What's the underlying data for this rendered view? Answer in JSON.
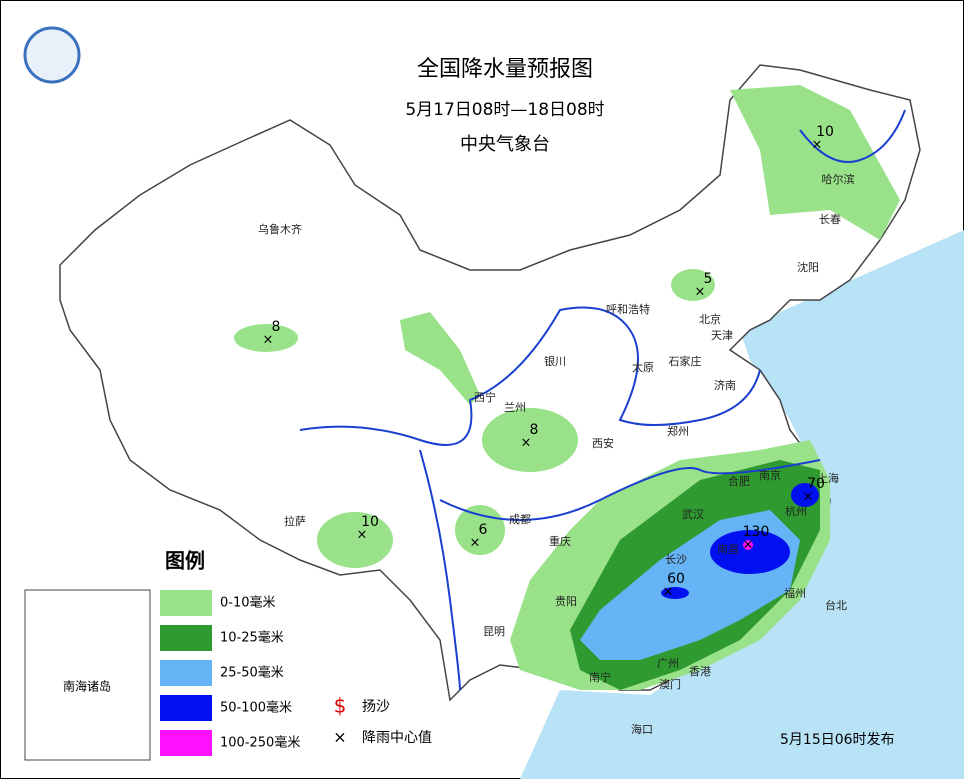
{
  "header": {
    "title": "全国降水量预报图",
    "period": "5月17日08时—18日08时",
    "issuer": "中央气象台"
  },
  "legend": {
    "title": "图例",
    "items": [
      {
        "label": "0-10毫米",
        "color": "#99e28a"
      },
      {
        "label": "10-25毫米",
        "color": "#2f9a2f"
      },
      {
        "label": "25-50毫米",
        "color": "#66b3f5"
      },
      {
        "label": "50-100毫米",
        "color": "#0010f0"
      },
      {
        "label": "100-250毫米",
        "color": "#ff10ff"
      }
    ],
    "symbols": [
      "扬沙",
      "降雨中心值"
    ]
  },
  "inset_label": "南海诸岛",
  "footer": "5月15日06时发布",
  "cities": [
    "乌鲁木齐",
    "拉萨",
    "西宁",
    "兰州",
    "银川",
    "呼和浩特",
    "北京",
    "天津",
    "石家庄",
    "太原",
    "济南",
    "郑州",
    "西安",
    "成都",
    "重庆",
    "贵阳",
    "昆明",
    "南宁",
    "广州",
    "香港",
    "澳门",
    "海口",
    "长沙",
    "武汉",
    "南昌",
    "合肥",
    "南京",
    "上海",
    "杭州",
    "福州",
    "台北",
    "哈尔滨",
    "长春",
    "沈阳"
  ],
  "rain_centers": [
    10,
    5,
    8,
    8,
    10,
    6,
    130,
    70,
    60
  ]
}
